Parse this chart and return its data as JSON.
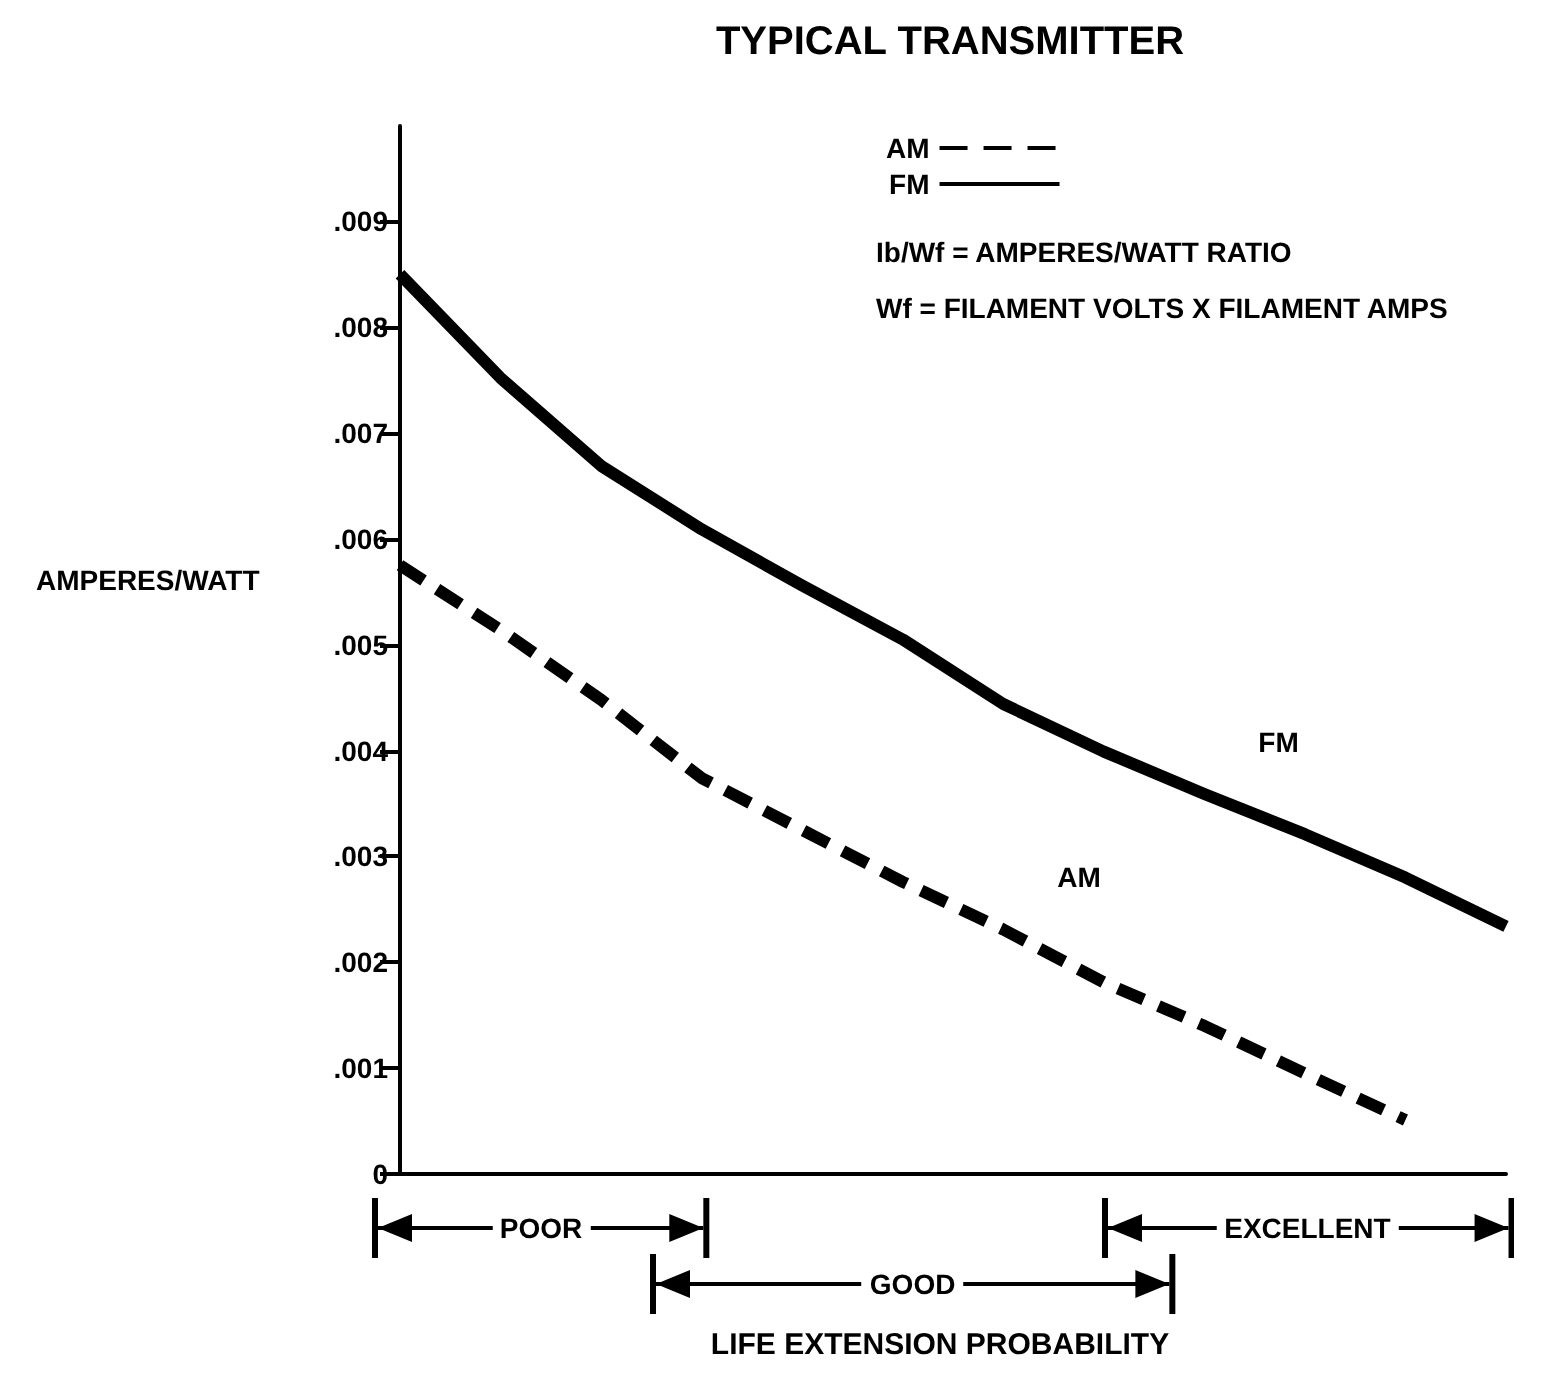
{
  "chart_data": {
    "type": "line",
    "title": "TYPICAL TRANSMITTER",
    "xlabel": "LIFE EXTENSION PROBABILITY",
    "ylabel": "AMPERES/WATT",
    "categories": [
      null,
      null,
      null,
      null,
      null,
      null,
      null,
      null,
      null,
      null,
      null,
      null
    ],
    "series": [
      {
        "name": "AM",
        "color": "#000000",
        "line_style": "dashed",
        "values": [
          0.00575,
          0.00514,
          0.00448,
          0.00374,
          0.00325,
          0.00276,
          0.00231,
          0.00181,
          0.0014,
          0.00095,
          0.00051,
          null
        ]
      },
      {
        "name": "FM",
        "color": "#000000",
        "line_style": "solid",
        "values": [
          0.0085,
          0.00752,
          0.00669,
          0.00609,
          0.00556,
          0.00505,
          0.00444,
          0.00399,
          0.00359,
          0.00321,
          0.0028,
          0.00234
        ]
      }
    ],
    "ylim": [
      0,
      0.0099
    ],
    "yticks": [
      0,
      {
        "value": 0.001,
        "label": ".001"
      },
      {
        "value": 0.002,
        "label": ".002"
      },
      {
        "value": 0.003,
        "label": ".003"
      },
      {
        "value": 0.004,
        "label": ".004"
      },
      {
        "value": 0.005,
        "label": ".005"
      },
      {
        "value": 0.006,
        "label": ".006"
      },
      {
        "value": 0.007,
        "label": ".007"
      },
      {
        "value": 0.008,
        "label": ".008"
      },
      {
        "value": 0.009,
        "label": ".009"
      }
    ],
    "annotations": [
      "POOR",
      "GOOD",
      "EXCELLENT",
      "Ib/Wf = AMPERES/WATT RATIO",
      "Wf = FILAMENT VOLTS X FILAMENT AMPS"
    ],
    "grid": false,
    "legend": "top right",
    "marker": "none"
  }
}
